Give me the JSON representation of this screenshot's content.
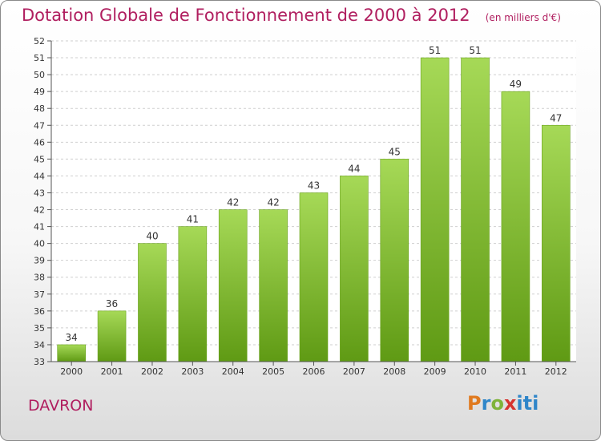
{
  "chart_data": {
    "type": "bar",
    "title": "Dotation Globale de Fonctionnement de 2000 à 2012",
    "subtitle": "(en milliers d'€)",
    "categories": [
      "2000",
      "2001",
      "2002",
      "2003",
      "2004",
      "2005",
      "2006",
      "2007",
      "2008",
      "2009",
      "2010",
      "2011",
      "2012"
    ],
    "values": [
      34,
      36,
      40,
      41,
      42,
      42,
      43,
      44,
      45,
      51,
      51,
      49,
      47
    ],
    "ylim": [
      33,
      52
    ],
    "yticks": [
      33,
      34,
      35,
      36,
      37,
      38,
      39,
      40,
      41,
      42,
      43,
      44,
      45,
      46,
      47,
      48,
      49,
      50,
      51,
      52
    ],
    "xlabel": "",
    "ylabel": "",
    "grid": "horizontal dashed",
    "bar_color": "#7fbf2a",
    "legend": "none"
  },
  "footer": {
    "city": "DAVRON",
    "logo_text": "Proxiti"
  },
  "colors": {
    "title": "#b01e5f",
    "bar_top": "#a6d957",
    "bar_bottom": "#5f9a14"
  }
}
